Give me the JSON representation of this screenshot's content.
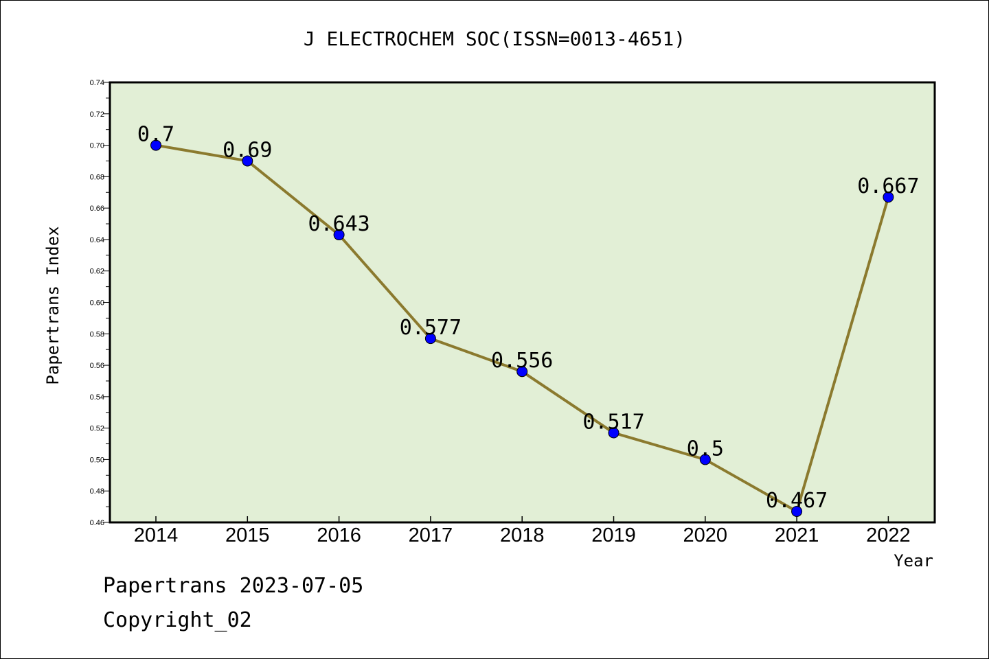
{
  "chart_data": {
    "type": "line",
    "title": "J ELECTROCHEM SOC(ISSN=0013-4651)",
    "xlabel": "Year",
    "ylabel": "Papertrans Index",
    "categories": [
      "2014",
      "2015",
      "2016",
      "2017",
      "2018",
      "2019",
      "2020",
      "2021",
      "2022"
    ],
    "series": [
      {
        "values": [
          0.7,
          0.69,
          0.643,
          0.577,
          0.556,
          0.517,
          0.5,
          0.467,
          0.667
        ],
        "labels": [
          "0.7",
          "0.69",
          "0.643",
          "0.577",
          "0.556",
          "0.517",
          "0.5",
          "0.467",
          "0.667"
        ]
      }
    ],
    "ylim": [
      0.46,
      0.74
    ],
    "yticks": [
      "0.46",
      "0.48",
      "0.50",
      "0.52",
      "0.54",
      "0.56",
      "0.58",
      "0.60",
      "0.62",
      "0.64",
      "0.66",
      "0.68",
      "0.70",
      "0.72",
      "0.74"
    ],
    "grid": false,
    "colors": {
      "plot_background": "#e2efd6",
      "line": "#8b7a2e",
      "marker": "#0000ff"
    }
  },
  "footer": {
    "line1": "Papertrans 2023-07-05",
    "line2": "Copyright_02"
  }
}
